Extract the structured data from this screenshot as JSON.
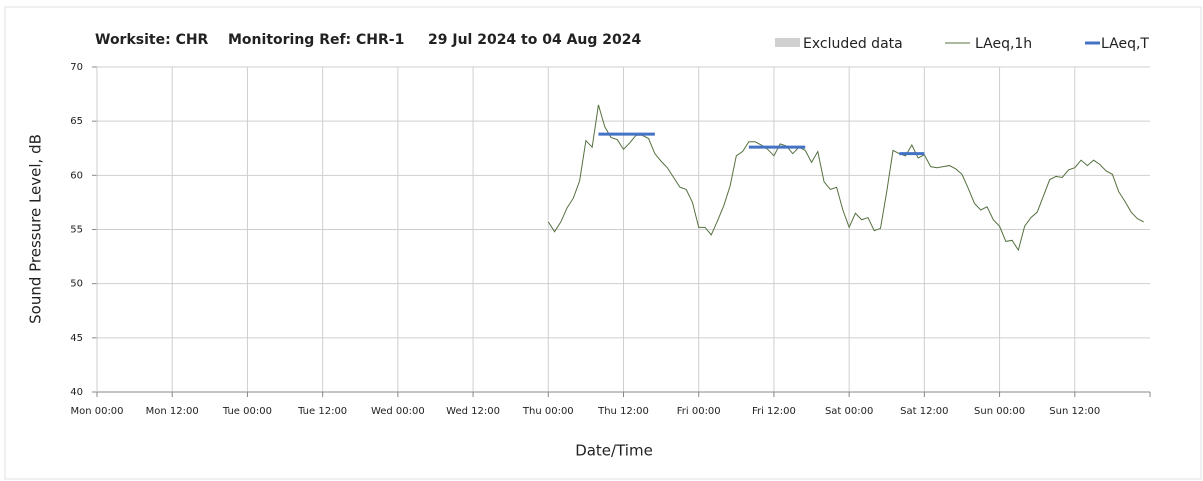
{
  "chart_data": {
    "type": "line",
    "title_parts": [
      "Worksite: CHR",
      "Monitoring Ref: CHR-1",
      "29 Jul 2024 to 04 Aug 2024"
    ],
    "xlabel": "Date/Time",
    "ylabel": "Sound Pressure Level, dB",
    "xlim": [
      0,
      168
    ],
    "ylim": [
      40,
      70
    ],
    "xticks": [
      {
        "value": 0,
        "label": "Mon 00:00"
      },
      {
        "value": 12,
        "label": "Mon 12:00"
      },
      {
        "value": 24,
        "label": "Tue 00:00"
      },
      {
        "value": 36,
        "label": "Tue 12:00"
      },
      {
        "value": 48,
        "label": "Wed 00:00"
      },
      {
        "value": 60,
        "label": "Wed 12:00"
      },
      {
        "value": 72,
        "label": "Thu 00:00"
      },
      {
        "value": 84,
        "label": "Thu 12:00"
      },
      {
        "value": 96,
        "label": "Fri 00:00"
      },
      {
        "value": 108,
        "label": "Fri 12:00"
      },
      {
        "value": 120,
        "label": "Sat 00:00"
      },
      {
        "value": 132,
        "label": "Sat 12:00"
      },
      {
        "value": 144,
        "label": "Sun 00:00"
      },
      {
        "value": 156,
        "label": "Sun 12:00"
      }
    ],
    "yticks": [
      40,
      45,
      50,
      55,
      60,
      65,
      70
    ],
    "grid": true,
    "excluded": {
      "name": "Excluded data",
      "color": "#d0d0d0"
    },
    "series": [
      {
        "name": "LAeq,1h",
        "color": "#55703f",
        "width": 1,
        "x": [
          72,
          73,
          74,
          75,
          76,
          77,
          78,
          79,
          80,
          81,
          82,
          83,
          84,
          85,
          86,
          87,
          88,
          89,
          90,
          91,
          92,
          93,
          94,
          95,
          96,
          97,
          98,
          99,
          100,
          101,
          102,
          103,
          104,
          105,
          106,
          107,
          108,
          109,
          110,
          111,
          112,
          113,
          114,
          115,
          116,
          117,
          118,
          119,
          120,
          121,
          122,
          123,
          124,
          125,
          126,
          127,
          128,
          129,
          130,
          131,
          132,
          133,
          134,
          135,
          136,
          137,
          138,
          139,
          140,
          141,
          142,
          143,
          144,
          145,
          146,
          147,
          148,
          149,
          150,
          151,
          152,
          153,
          154,
          155,
          156,
          157,
          158,
          159,
          160,
          161,
          162,
          163,
          164,
          165,
          166,
          167
        ],
        "values": [
          55.7,
          54.8,
          55.7,
          57.0,
          57.9,
          59.5,
          63.2,
          62.6,
          66.5,
          64.5,
          63.5,
          63.3,
          62.4,
          63.0,
          63.7,
          63.7,
          63.4,
          62.0,
          61.3,
          60.7,
          59.8,
          58.9,
          58.7,
          57.5,
          55.2,
          55.2,
          54.5,
          55.8,
          57.2,
          59.0,
          61.8,
          62.2,
          63.1,
          63.1,
          62.8,
          62.4,
          61.8,
          62.9,
          62.7,
          62.0,
          62.6,
          62.3,
          61.2,
          62.2,
          59.4,
          58.7,
          58.9,
          56.8,
          55.2,
          56.5,
          55.9,
          56.1,
          54.9,
          55.1,
          58.5,
          62.3,
          62.0,
          61.8,
          62.8,
          61.6,
          61.9,
          60.8,
          60.7,
          60.8,
          60.9,
          60.6,
          60.1,
          58.8,
          57.4,
          56.8,
          57.1,
          55.9,
          55.3,
          53.9,
          54.0,
          53.1,
          55.3,
          56.1,
          56.6,
          58.1,
          59.6,
          59.9,
          59.8,
          60.5,
          60.7,
          61.4,
          60.9,
          61.4,
          61.0,
          60.4,
          60.1,
          58.5,
          57.6,
          56.6,
          56.0,
          55.7
        ]
      },
      {
        "name": "LAeq,T",
        "color": "#4472c4",
        "width": 3,
        "x": [
          80,
          89,
          96,
          104,
          113,
          120,
          128,
          132
        ],
        "values": [
          63.8,
          63.8,
          null,
          62.6,
          62.6,
          null,
          62.0,
          62.0
        ]
      }
    ]
  }
}
